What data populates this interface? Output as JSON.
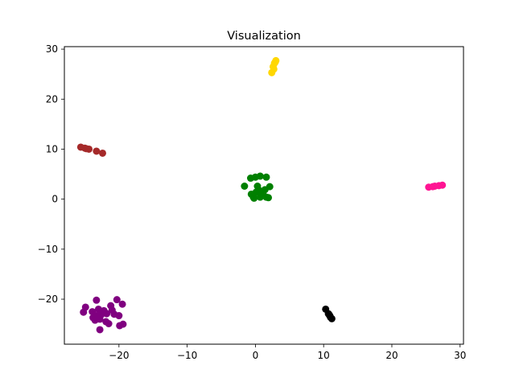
{
  "chart_data": {
    "type": "scatter",
    "title": "Visualization",
    "xlabel": "",
    "ylabel": "",
    "xlim": [
      -28,
      30.5
    ],
    "ylim": [
      -29,
      30.5
    ],
    "x_ticks": [
      -20,
      -10,
      0,
      10,
      20,
      30
    ],
    "x_tick_labels": [
      "−20",
      "−10",
      "0",
      "10",
      "20",
      "30"
    ],
    "y_ticks": [
      -20,
      -10,
      0,
      10,
      20,
      30
    ],
    "y_tick_labels": [
      "−20",
      "−10",
      "0",
      "10",
      "20",
      "30"
    ],
    "grid": false,
    "legend": false,
    "series": [
      {
        "color": "#FFD700",
        "points": [
          [
            2.4,
            25.3
          ],
          [
            2.6,
            26.5
          ],
          [
            2.8,
            27.2
          ],
          [
            3.0,
            27.7
          ],
          [
            2.7,
            26.0
          ],
          [
            2.9,
            27.4
          ]
        ]
      },
      {
        "color": "#A52A2A",
        "points": [
          [
            -25.6,
            10.4
          ],
          [
            -25.0,
            10.2
          ],
          [
            -24.4,
            10.0
          ],
          [
            -23.3,
            9.6
          ],
          [
            -22.4,
            9.2
          ],
          [
            -24.8,
            10.1
          ]
        ]
      },
      {
        "color": "#008000",
        "points": [
          [
            -1.6,
            2.6
          ],
          [
            -0.7,
            4.2
          ],
          [
            0.0,
            4.4
          ],
          [
            0.7,
            4.6
          ],
          [
            1.6,
            4.4
          ],
          [
            2.1,
            2.5
          ],
          [
            -0.6,
            1.0
          ],
          [
            -0.3,
            0.4
          ],
          [
            0.3,
            2.6
          ],
          [
            0.5,
            1.8
          ],
          [
            0.7,
            0.4
          ],
          [
            1.1,
            1.1
          ],
          [
            1.4,
            1.9
          ],
          [
            1.9,
            0.3
          ],
          [
            0.9,
            0.9
          ],
          [
            1.6,
            0.4
          ],
          [
            0.1,
            1.4
          ],
          [
            -0.2,
            0.2
          ]
        ]
      },
      {
        "color": "#FF1493",
        "points": [
          [
            25.4,
            2.4
          ],
          [
            26.3,
            2.6
          ],
          [
            26.9,
            2.7
          ],
          [
            27.4,
            2.8
          ],
          [
            26.0,
            2.5
          ]
        ]
      },
      {
        "color": "#800080",
        "points": [
          [
            -25.2,
            -22.6
          ],
          [
            -24.9,
            -21.6
          ],
          [
            -23.3,
            -20.2
          ],
          [
            -23.0,
            -22.0
          ],
          [
            -22.5,
            -22.5
          ],
          [
            -21.8,
            -22.9
          ],
          [
            -21.2,
            -21.3
          ],
          [
            -20.3,
            -20.1
          ],
          [
            -19.5,
            -21.0
          ],
          [
            -23.8,
            -23.7
          ],
          [
            -23.3,
            -23.3
          ],
          [
            -22.6,
            -23.1
          ],
          [
            -22.0,
            -22.7
          ],
          [
            -20.7,
            -23.0
          ],
          [
            -20.0,
            -23.3
          ],
          [
            -23.5,
            -24.2
          ],
          [
            -22.8,
            -24.0
          ],
          [
            -21.9,
            -24.5
          ],
          [
            -21.5,
            -24.9
          ],
          [
            -19.9,
            -25.3
          ],
          [
            -19.4,
            -25.0
          ],
          [
            -22.8,
            -26.1
          ],
          [
            -21.0,
            -22.2
          ],
          [
            -22.2,
            -22.3
          ],
          [
            -23.9,
            -22.5
          ]
        ]
      },
      {
        "color": "#000000",
        "points": [
          [
            10.3,
            -22.0
          ],
          [
            10.7,
            -22.9
          ],
          [
            10.9,
            -23.3
          ],
          [
            11.0,
            -23.6
          ],
          [
            11.2,
            -23.9
          ],
          [
            10.8,
            -23.1
          ]
        ]
      }
    ]
  }
}
